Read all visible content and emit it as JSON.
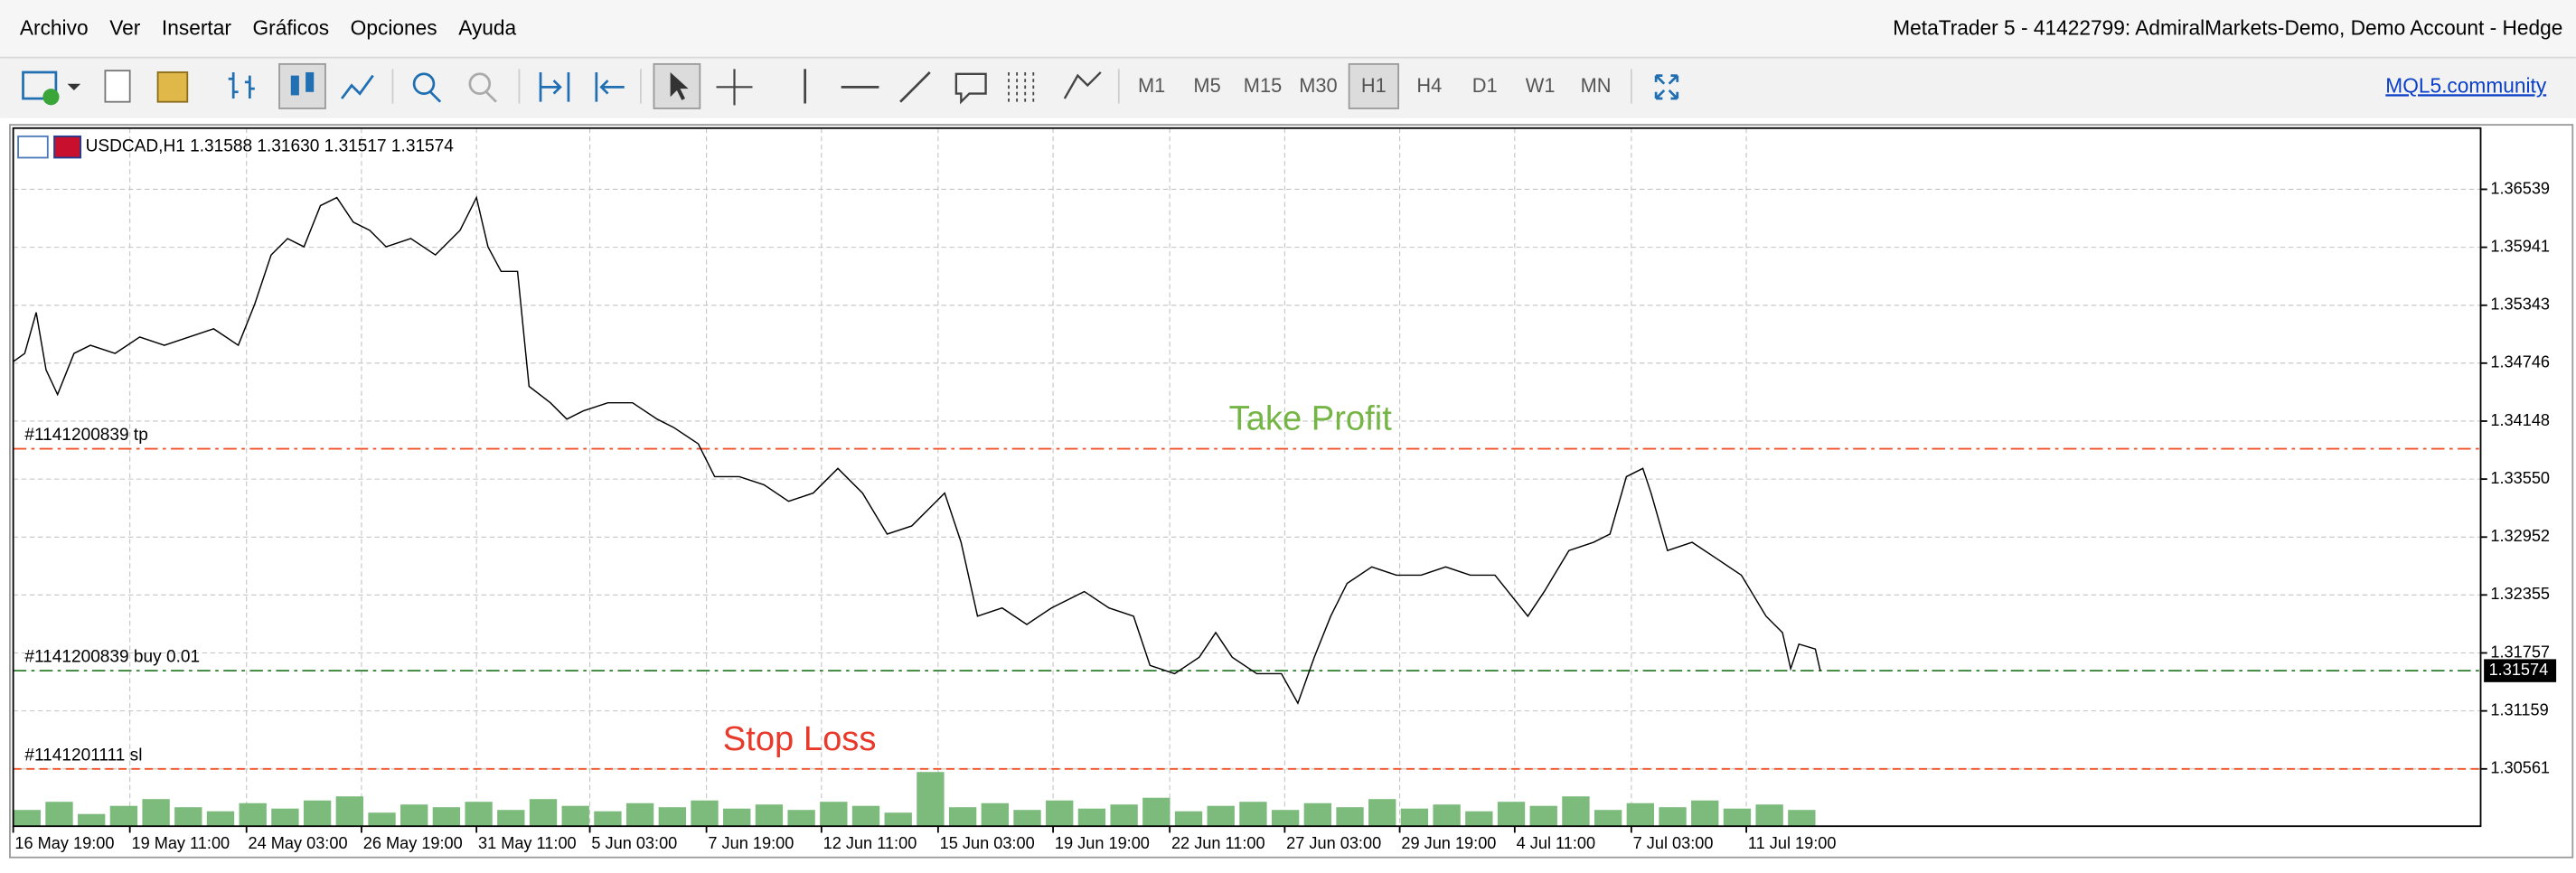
{
  "menu": {
    "items": [
      "Archivo",
      "Ver",
      "Insertar",
      "Gráficos",
      "Opciones",
      "Ayuda"
    ],
    "title": "MetaTrader 5 - 41422799: AdmiralMarkets-Demo, Demo Account - Hedge"
  },
  "toolbar": {
    "timeframes": [
      "M1",
      "M5",
      "M15",
      "M30",
      "H1",
      "H4",
      "D1",
      "W1",
      "MN"
    ],
    "active_timeframe": "H1",
    "link": "MQL5.community"
  },
  "chart_data": {
    "type": "line",
    "header": "USDCAD,H1  1.31588 1.31630 1.31517 1.31574",
    "x": [
      0,
      7,
      14,
      20,
      27,
      37,
      47,
      62,
      77,
      92,
      107,
      122,
      137,
      147,
      157,
      167,
      177,
      187,
      197,
      207,
      217,
      227,
      242,
      257,
      272,
      282,
      289,
      297,
      307,
      314,
      327,
      337,
      347,
      362,
      377,
      392,
      402,
      417,
      427,
      442,
      457,
      472,
      487,
      502,
      517,
      532,
      547,
      557,
      567,
      577,
      587,
      602,
      617,
      632,
      652,
      667,
      682,
      692,
      707,
      722,
      732,
      742,
      757,
      772,
      782,
      792,
      802,
      812,
      827,
      842,
      857,
      872,
      887,
      902,
      922,
      932,
      947,
      962,
      972,
      982,
      992,
      997,
      1007,
      1022,
      1037,
      1052,
      1067,
      1077,
      1082,
      1087,
      1097,
      1100
    ],
    "series": [
      {
        "color": "#000000",
        "values": [
          1.34761,
          1.34846,
          1.35269,
          1.34676,
          1.34422,
          1.34846,
          1.3493,
          1.34846,
          1.35015,
          1.3493,
          1.35015,
          1.351,
          1.3493,
          1.35354,
          1.35862,
          1.36031,
          1.35946,
          1.3637,
          1.36454,
          1.362,
          1.36116,
          1.35946,
          1.36031,
          1.35862,
          1.36116,
          1.36454,
          1.35946,
          1.35692,
          1.35692,
          1.34507,
          1.34337,
          1.34168,
          1.34253,
          1.34337,
          1.34337,
          1.34168,
          1.34083,
          1.33914,
          1.33575,
          1.33575,
          1.33491,
          1.33321,
          1.33406,
          1.3366,
          1.33406,
          1.32983,
          1.33067,
          1.33237,
          1.33406,
          1.32898,
          1.32136,
          1.32221,
          1.32051,
          1.32221,
          1.3239,
          1.32221,
          1.32136,
          1.31628,
          1.31543,
          1.31713,
          1.31967,
          1.31713,
          1.31543,
          1.31543,
          1.31238,
          1.31713,
          1.32136,
          1.32475,
          1.32644,
          1.32559,
          1.32559,
          1.32644,
          1.32559,
          1.32559,
          1.32136,
          1.3239,
          1.32813,
          1.32898,
          1.32983,
          1.33575,
          1.3366,
          1.33406,
          1.32813,
          1.32898,
          1.32729,
          1.32559,
          1.32136,
          1.31967,
          1.31594,
          1.31848,
          1.31797,
          1.31574
        ]
      }
    ],
    "volume": {
      "color": "#7dbb7d",
      "values": [
        12,
        18,
        9,
        15,
        20,
        14,
        11,
        17,
        13,
        19,
        22,
        10,
        16,
        14,
        18,
        12,
        20,
        15,
        11,
        17,
        14,
        19,
        13,
        16,
        12,
        18,
        15,
        10,
        40,
        14,
        17,
        12,
        19,
        13,
        16,
        21,
        11,
        15,
        18,
        12,
        17,
        14,
        20,
        13,
        16,
        11,
        18,
        15,
        22,
        12,
        17,
        14,
        19,
        13,
        16,
        12
      ]
    },
    "xlim": [
      0,
      1502
    ],
    "xticks": [
      {
        "value": 0,
        "label": "16 May 19:00"
      },
      {
        "value": 71,
        "label": "19 May 11:00"
      },
      {
        "value": 142,
        "label": "24 May 03:00"
      },
      {
        "value": 212,
        "label": "26 May 19:00"
      },
      {
        "value": 282,
        "label": "31 May 11:00"
      },
      {
        "value": 351,
        "label": "5 Jun 03:00"
      },
      {
        "value": 422,
        "label": "7 Jun 19:00"
      },
      {
        "value": 492,
        "label": "12 Jun 11:00"
      },
      {
        "value": 563,
        "label": "15 Jun 03:00"
      },
      {
        "value": 633,
        "label": "19 Jun 19:00"
      },
      {
        "value": 704,
        "label": "22 Jun 11:00"
      },
      {
        "value": 774,
        "label": "27 Jun 03:00"
      },
      {
        "value": 844,
        "label": "29 Jun 19:00"
      },
      {
        "value": 914,
        "label": "4 Jul 11:00"
      },
      {
        "value": 985,
        "label": "7 Jul 03:00"
      },
      {
        "value": 1055,
        "label": "11 Jul 19:00"
      }
    ],
    "ylim": [
      1.2997,
      1.3717
    ],
    "yticks": [
      1.36539,
      1.35941,
      1.35343,
      1.34746,
      1.34148,
      {
        "value": 1.3355,
        "label": "1.33550"
      },
      1.32952,
      1.32355,
      1.31757,
      1.31159,
      1.30561
    ],
    "grid": true,
    "current_price": 1.31574,
    "levels": [
      {
        "label": "#1141200839 tp",
        "value": 1.33863,
        "color": "#f0522a",
        "style": "dashdot"
      },
      {
        "label": "#1141200839 buy 0.01",
        "value": 1.31574,
        "color": "#2a7d2a",
        "style": "dashdot"
      },
      {
        "label": "#1141201111 sl",
        "value": 1.30561,
        "color": "#f0522a",
        "style": "dashed"
      }
    ],
    "annotations": [
      {
        "text": "Take Profit",
        "color": "#74b545"
      },
      {
        "text": "Stop Loss",
        "color": "#e8392a"
      }
    ]
  }
}
